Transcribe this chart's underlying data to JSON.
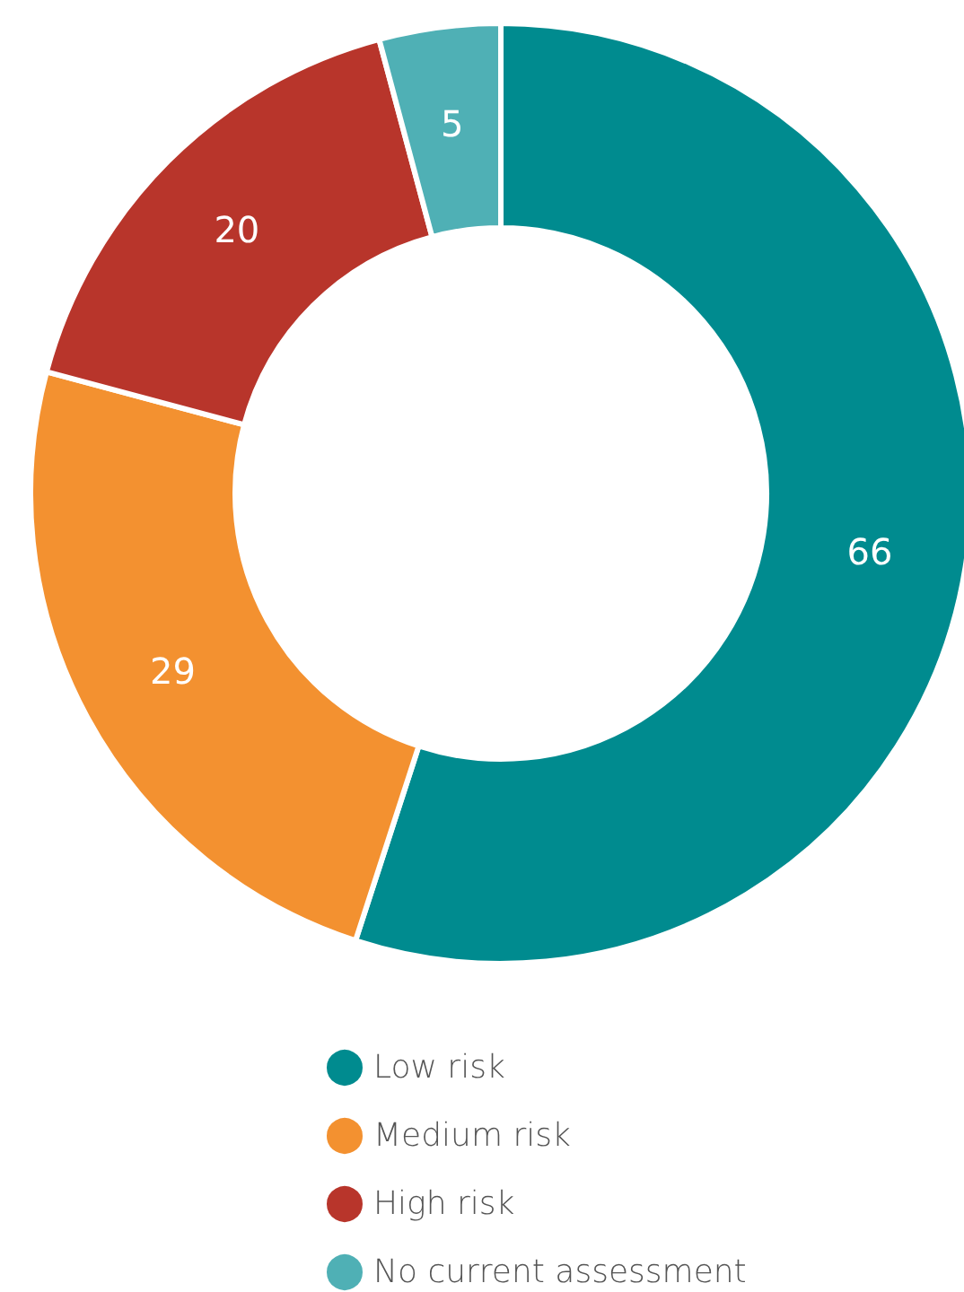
{
  "chart_data": {
    "type": "donut",
    "categories": [
      "Low risk",
      "Medium risk",
      "High risk",
      "No current assessment"
    ],
    "values": [
      66,
      29,
      20,
      5
    ],
    "colors": [
      "#008b8f",
      "#f39130",
      "#b8352b",
      "#4fb0b5"
    ],
    "data_labels": true,
    "legend": "bottom"
  }
}
